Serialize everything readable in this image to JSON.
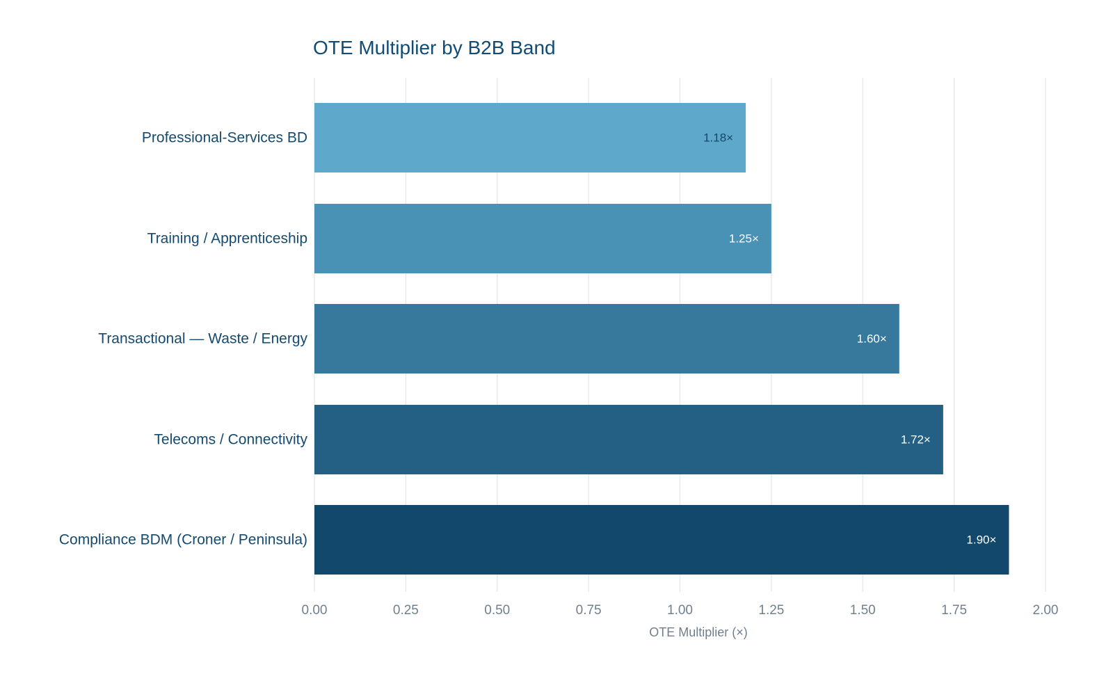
{
  "chart_data": {
    "type": "bar",
    "orientation": "horizontal",
    "title": "OTE Multiplier by B2B Band",
    "xlabel": "OTE Multiplier (×)",
    "ylabel": "",
    "categories": [
      "Professional-Services BD",
      "Training / Apprenticeship",
      "Transactional — Waste / Energy",
      "Telecoms / Connectivity",
      "Compliance BDM (Croner / Peninsula)"
    ],
    "values": [
      1.18,
      1.25,
      1.6,
      1.72,
      1.9
    ],
    "data_labels": [
      "1.18×",
      "1.25×",
      "1.60×",
      "1.72×",
      "1.90×"
    ],
    "bar_colors": [
      "#5ea8cb",
      "#4a91b6",
      "#37799c",
      "#245f84",
      "#12486c"
    ],
    "data_label_colors": [
      "#12486c",
      "#ffffff",
      "#ffffff",
      "#ffffff",
      "#ffffff"
    ],
    "xlim": [
      0,
      2.0
    ],
    "x_ticks": [
      0,
      0.25,
      0.5,
      0.75,
      1.0,
      1.25,
      1.5,
      1.75,
      2.0
    ],
    "x_tick_labels": [
      "0.00",
      "0.25",
      "0.50",
      "0.75",
      "1.00",
      "1.25",
      "1.50",
      "1.75",
      "2.00"
    ],
    "grid": "vertical",
    "legend": "none"
  }
}
